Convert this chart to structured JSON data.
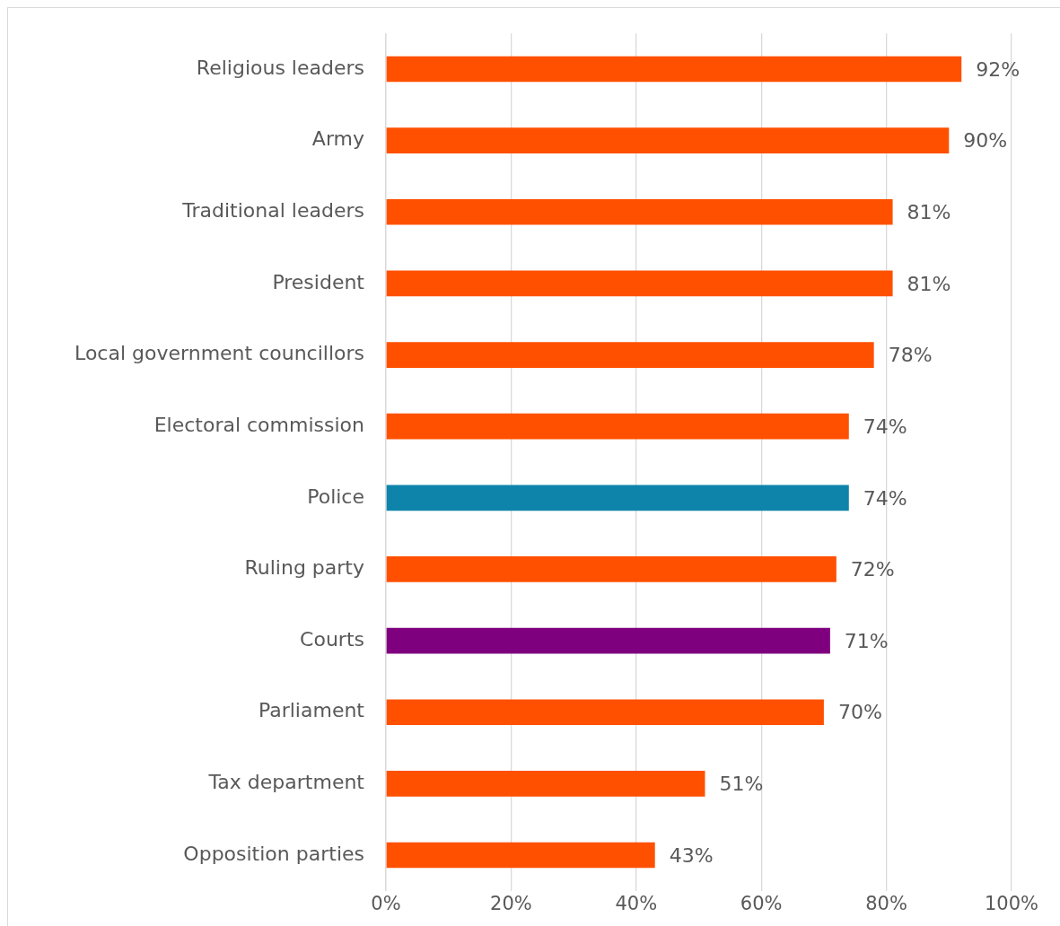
{
  "chart_data": {
    "type": "bar",
    "orientation": "horizontal",
    "categories": [
      "Religious leaders",
      "Army",
      "Traditional leaders",
      "President",
      "Local government councillors",
      "Electoral commission",
      "Police",
      "Ruling party",
      "Courts",
      "Parliament",
      "Tax department",
      "Opposition parties"
    ],
    "values": [
      92,
      90,
      81,
      81,
      78,
      74,
      74,
      72,
      71,
      70,
      51,
      43
    ],
    "colors": [
      "#ff5000",
      "#ff5000",
      "#ff5000",
      "#ff5000",
      "#ff5000",
      "#ff5000",
      "#0e84ab",
      "#ff5000",
      "#7e007e",
      "#ff5000",
      "#ff5000",
      "#ff5000"
    ],
    "value_labels": [
      "92%",
      "90%",
      "81%",
      "81%",
      "78%",
      "74%",
      "74%",
      "72%",
      "71%",
      "70%",
      "51%",
      "43%"
    ],
    "xlim": [
      0,
      100
    ],
    "xticks": [
      {
        "value": 0,
        "label": "0%"
      },
      {
        "value": 20,
        "label": "20%"
      },
      {
        "value": 40,
        "label": "40%"
      },
      {
        "value": 60,
        "label": "60%"
      },
      {
        "value": 80,
        "label": "80%"
      },
      {
        "value": 100,
        "label": "100%"
      }
    ],
    "grid": "x",
    "legend": false
  }
}
